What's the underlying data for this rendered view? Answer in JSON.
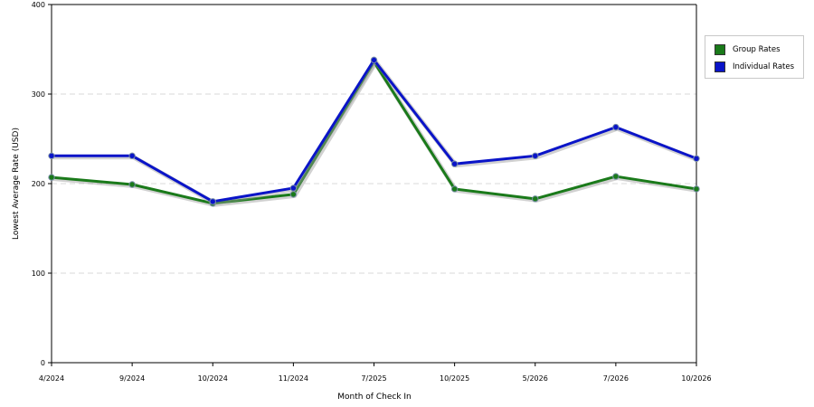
{
  "chart_data": {
    "type": "line",
    "categories": [
      "4/2024",
      "9/2024",
      "10/2024",
      "11/2024",
      "7/2025",
      "10/2025",
      "5/2026",
      "7/2026",
      "10/2026"
    ],
    "series": [
      {
        "name": "Group Rates",
        "color": "#1a7a1a",
        "values": [
          207,
          199,
          178,
          188,
          336,
          194,
          183,
          208,
          194
        ]
      },
      {
        "name": "Individual Rates",
        "color": "#0a14c8",
        "values": [
          231,
          231,
          180,
          195,
          338,
          222,
          231,
          263,
          228
        ]
      }
    ],
    "xlabel": "Month of Check In",
    "ylabel": "Lowest Average Rate (USD)",
    "ylim": [
      0,
      400
    ],
    "yticks": [
      0,
      100,
      200,
      300,
      400
    ],
    "grid": true,
    "legend_position": "top-right"
  }
}
